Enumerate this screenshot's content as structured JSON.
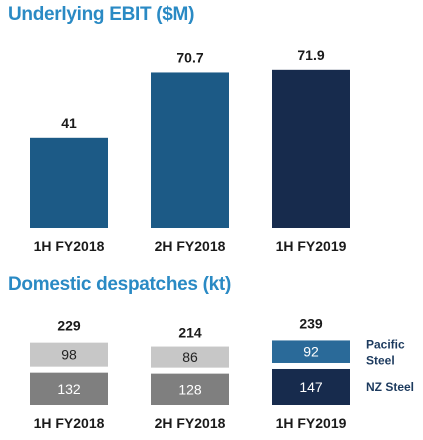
{
  "chart_data": [
    {
      "type": "bar",
      "title": "Underlying EBIT ($M)",
      "categories": [
        "1H FY2018",
        "2H FY2018",
        "1H FY2019"
      ],
      "values": [
        41,
        70.7,
        71.9
      ],
      "value_labels": [
        "41",
        "70.7",
        "71.9"
      ],
      "colors": [
        "#1c5a86",
        "#1c5a86",
        "#172b4d"
      ],
      "ylim": [
        0,
        75
      ]
    },
    {
      "type": "bar",
      "stacked": true,
      "title": "Domestic despatches (kt)",
      "categories": [
        "1H FY2018",
        "2H FY2018",
        "1H FY2019"
      ],
      "totals": [
        "229",
        "214",
        "239"
      ],
      "series": [
        {
          "name": "NZ Steel",
          "values": [
            132,
            128,
            147
          ],
          "colors": [
            "#7f7f7f",
            "#7f7f7f",
            "#172b4d"
          ]
        },
        {
          "name": "Pacific Steel",
          "values": [
            98,
            86,
            92
          ],
          "colors": [
            "#c7c7c7",
            "#c7c7c7",
            "#2a6a99"
          ]
        }
      ]
    }
  ],
  "colors": {
    "title": "#2a8ac4",
    "legend_text": "#1c3a5e",
    "dark_text": "#1a1a1a",
    "light_segment_text": "#222222",
    "dark_segment_text": "#ffffff"
  }
}
